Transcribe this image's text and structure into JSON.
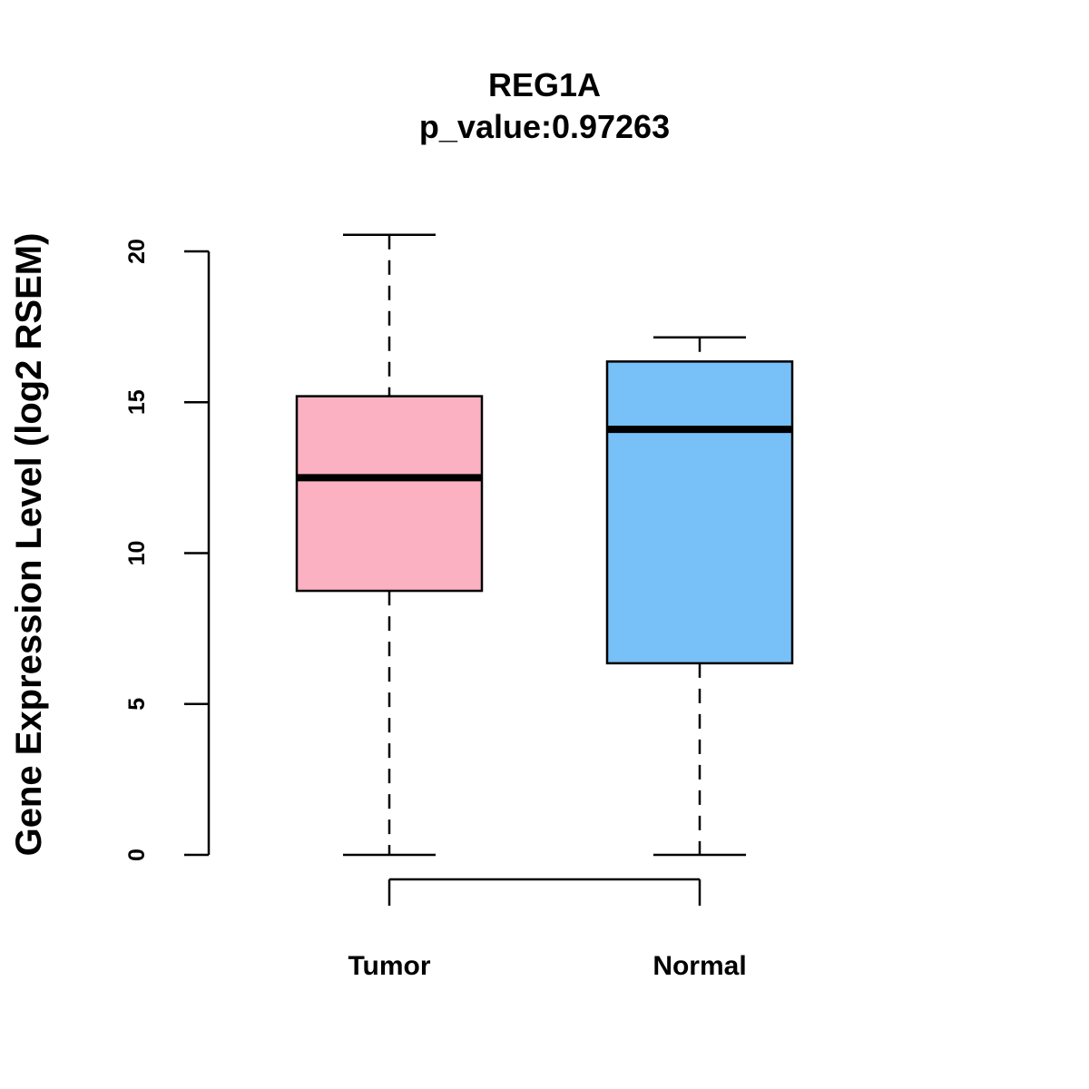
{
  "chart_data": {
    "type": "boxplot",
    "title": "REG1A",
    "subtitle": "p_value:0.97263",
    "xlabel": "",
    "ylabel": "Gene Expression Level (log2 RSEM)",
    "ylim": [
      0,
      20
    ],
    "yticks": [
      0,
      5,
      10,
      15,
      20
    ],
    "ytick_labels": [
      "0",
      "5",
      "10",
      "15",
      "20"
    ],
    "grid": false,
    "comparison_bracket": true,
    "categories": [
      "Tumor",
      "Normal"
    ],
    "series": [
      {
        "name": "Tumor",
        "color": "#FBB1C2",
        "whisker_low": 0,
        "q1": 8.75,
        "median": 12.5,
        "q3": 15.2,
        "whisker_high": 20.55
      },
      {
        "name": "Normal",
        "color": "#78C0F8",
        "whisker_low": 0,
        "q1": 6.35,
        "median": 14.1,
        "q3": 16.35,
        "whisker_high": 17.15
      }
    ]
  }
}
